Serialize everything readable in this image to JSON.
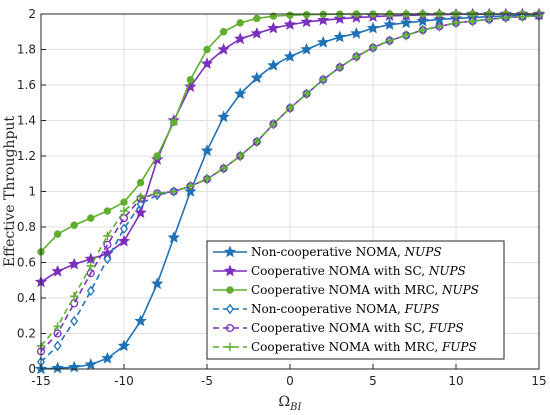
{
  "chart_data": {
    "type": "line",
    "xlabel_base": "Ω",
    "xlabel_sub": "BI",
    "ylabel": "Effective Throughput",
    "xlim": [
      -15,
      15
    ],
    "ylim": [
      0,
      2
    ],
    "xticks": [
      -15,
      -10,
      -5,
      0,
      5,
      10,
      15
    ],
    "xtick_labels": [
      "-15",
      "-10",
      "-5",
      "0",
      "5",
      "10",
      "15"
    ],
    "yticks": [
      0,
      0.2,
      0.4,
      0.6,
      0.8,
      1,
      1.2,
      1.4,
      1.6,
      1.8,
      2
    ],
    "ytick_labels": [
      "0",
      "0.2",
      "0.4",
      "0.6",
      "0.8",
      "1",
      "1.2",
      "1.4",
      "1.6",
      "1.8",
      "2"
    ],
    "grid": true,
    "legend_position": "lower-right",
    "series": [
      {
        "name_text": "Non-cooperative NOMA, ",
        "name_italic": "NUPS",
        "color": "#1f72b6",
        "dash": false,
        "marker": "star",
        "x": [
          -15,
          -14,
          -13,
          -12,
          -11,
          -10,
          -9,
          -8,
          -7,
          -6,
          -5,
          -4,
          -3,
          -2,
          -1,
          0,
          1,
          2,
          3,
          4,
          5,
          6,
          7,
          8,
          9,
          10,
          11,
          12,
          13,
          14,
          15
        ],
        "y": [
          0.0,
          0.005,
          0.01,
          0.025,
          0.06,
          0.13,
          0.27,
          0.48,
          0.74,
          1.0,
          1.23,
          1.42,
          1.55,
          1.64,
          1.71,
          1.76,
          1.8,
          1.84,
          1.87,
          1.89,
          1.92,
          1.94,
          1.95,
          1.96,
          1.97,
          1.975,
          1.98,
          1.985,
          1.99,
          1.993,
          1.995
        ]
      },
      {
        "name_text": "Cooperative NOMA with SC, ",
        "name_italic": "NUPS",
        "color": "#7b2fbe",
        "dash": false,
        "marker": "star",
        "x": [
          -15,
          -14,
          -13,
          -12,
          -11,
          -10,
          -9,
          -8,
          -7,
          -6,
          -5,
          -4,
          -3,
          -2,
          -1,
          0,
          1,
          2,
          3,
          4,
          5,
          6,
          7,
          8,
          9,
          10,
          11,
          12,
          13,
          14,
          15
        ],
        "y": [
          0.49,
          0.55,
          0.59,
          0.62,
          0.65,
          0.72,
          0.88,
          1.18,
          1.4,
          1.59,
          1.72,
          1.8,
          1.86,
          1.89,
          1.92,
          1.94,
          1.955,
          1.965,
          1.973,
          1.98,
          1.985,
          1.99,
          1.992,
          1.995,
          1.997,
          1.998,
          1.999,
          1.999,
          2.0,
          2.0,
          2.0
        ]
      },
      {
        "name_text": "Cooperative NOMA with MRC, ",
        "name_italic": "NUPS",
        "color": "#5fae2e",
        "dash": false,
        "marker": "dot",
        "x": [
          -15,
          -14,
          -13,
          -12,
          -11,
          -10,
          -9,
          -8,
          -7,
          -6,
          -5,
          -4,
          -3,
          -2,
          -1,
          0,
          1,
          2,
          3,
          4,
          5,
          6,
          7,
          8,
          9,
          10,
          11,
          12,
          13,
          14,
          15
        ],
        "y": [
          0.66,
          0.76,
          0.81,
          0.85,
          0.89,
          0.94,
          1.05,
          1.2,
          1.39,
          1.63,
          1.8,
          1.9,
          1.95,
          1.975,
          1.988,
          1.993,
          1.996,
          1.998,
          1.999,
          2.0,
          2.0,
          2.0,
          2.0,
          2.0,
          2.0,
          2.0,
          2.0,
          2.0,
          2.0,
          2.0,
          2.0
        ]
      },
      {
        "name_text": "Non-cooperative NOMA, ",
        "name_italic": "FUPS",
        "color": "#1f72b6",
        "dash": true,
        "marker": "diamond",
        "x": [
          -15,
          -14,
          -13,
          -12,
          -11,
          -10,
          -9,
          -8,
          -7,
          -6,
          -5,
          -4,
          -3,
          -2,
          -1,
          0,
          1,
          2,
          3,
          4,
          5,
          6,
          7,
          8,
          9,
          10,
          11,
          12,
          13,
          14,
          15
        ],
        "y": [
          0.04,
          0.13,
          0.27,
          0.44,
          0.62,
          0.79,
          0.93,
          0.98,
          1.0,
          1.03,
          1.07,
          1.13,
          1.2,
          1.28,
          1.38,
          1.47,
          1.55,
          1.63,
          1.7,
          1.76,
          1.81,
          1.85,
          1.88,
          1.91,
          1.93,
          1.95,
          1.96,
          1.97,
          1.98,
          1.985,
          1.99
        ]
      },
      {
        "name_text": "Cooperative NOMA with SC, ",
        "name_italic": "FUPS",
        "color": "#7b2fbe",
        "dash": true,
        "marker": "circle",
        "x": [
          -15,
          -14,
          -13,
          -12,
          -11,
          -10,
          -9,
          -8,
          -7,
          -6,
          -5,
          -4,
          -3,
          -2,
          -1,
          0,
          1,
          2,
          3,
          4,
          5,
          6,
          7,
          8,
          9,
          10,
          11,
          12,
          13,
          14,
          15
        ],
        "y": [
          0.1,
          0.2,
          0.37,
          0.54,
          0.7,
          0.85,
          0.96,
          0.99,
          1.0,
          1.03,
          1.07,
          1.13,
          1.2,
          1.28,
          1.38,
          1.47,
          1.55,
          1.63,
          1.7,
          1.76,
          1.81,
          1.85,
          1.88,
          1.91,
          1.93,
          1.95,
          1.96,
          1.97,
          1.98,
          1.985,
          1.99
        ]
      },
      {
        "name_text": "Cooperative NOMA with MRC, ",
        "name_italic": "FUPS",
        "color": "#5fae2e",
        "dash": true,
        "marker": "plus",
        "x": [
          -15,
          -14,
          -13,
          -12,
          -11,
          -10,
          -9,
          -8,
          -7,
          -6,
          -5,
          -4,
          -3,
          -2,
          -1,
          0,
          1,
          2,
          3,
          4,
          5,
          6,
          7,
          8,
          9,
          10,
          11,
          12,
          13,
          14,
          15
        ],
        "y": [
          0.13,
          0.24,
          0.41,
          0.58,
          0.75,
          0.89,
          0.97,
          0.99,
          1.0,
          1.03,
          1.07,
          1.13,
          1.2,
          1.28,
          1.38,
          1.47,
          1.55,
          1.63,
          1.7,
          1.76,
          1.81,
          1.85,
          1.88,
          1.91,
          1.93,
          1.95,
          1.96,
          1.97,
          1.98,
          1.985,
          1.99
        ]
      }
    ]
  }
}
